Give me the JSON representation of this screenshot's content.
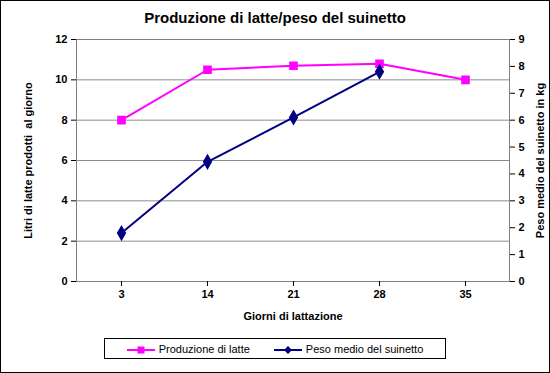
{
  "chart_data": {
    "type": "line",
    "title": "Produzione di latte/peso del suinetto",
    "x_label": "Giorni di lattazione",
    "y_label": "Litri di latte prodotti  al giorno",
    "y2_label": "Peso medio del suinetto in kg",
    "categories": [
      "3",
      "14",
      "21",
      "28",
      "35"
    ],
    "series": [
      {
        "name": "Produzione di latte",
        "color": "#ff00ff",
        "marker": "square",
        "values": [
          8.0,
          10.5,
          10.7,
          10.8,
          10.0
        ]
      },
      {
        "name": "Peso medio del suinetto",
        "color": "#000080",
        "marker": "diamond",
        "axis": "y2",
        "values": [
          1.8,
          4.45,
          6.1,
          7.8,
          null
        ]
      }
    ],
    "ylim": [
      0,
      12
    ],
    "yticks": [
      0,
      2,
      4,
      6,
      8,
      10,
      12
    ],
    "y2lim": [
      0,
      9
    ],
    "y2ticks": [
      0,
      1,
      2,
      3,
      4,
      5,
      6,
      7,
      8,
      9
    ],
    "grid": true,
    "legend": "bottom"
  }
}
